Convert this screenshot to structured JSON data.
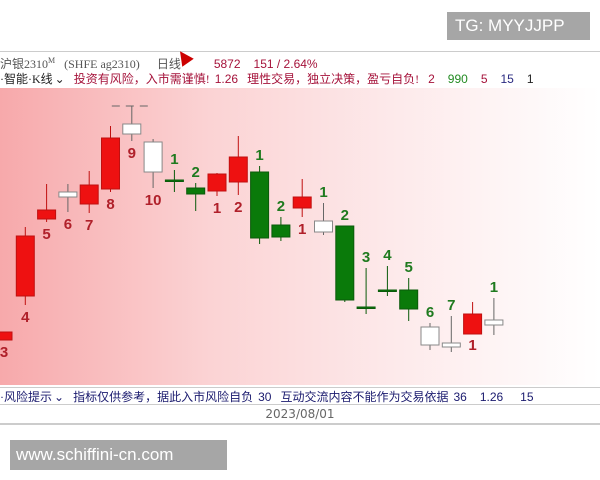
{
  "watermark_top": "TG: MYYJJPP",
  "watermark_bottom": "www.schiffini-cn.com",
  "header": {
    "symbol": "沪银2310",
    "symbol_sup": "M",
    "code": "(SHFE ag2310)",
    "period": "日线",
    "price": "5872",
    "change": "151 / 2.64%"
  },
  "indicator_bar": {
    "name": "·智能·K线",
    "text1": "投资有风险，入市需谨慎!",
    "v1": "1.26",
    "text2": "理性交易，独立决策，盈亏自负!",
    "v2": "2",
    "v3": "990",
    "v4": "5",
    "v5": "15",
    "v6": "1"
  },
  "footer": {
    "name": "·风险提示",
    "text1": "指标仅供参考，据此入市风险自负",
    "v1": "30",
    "text2": "互动交流内容不能作为交易依据",
    "v2": "36",
    "v3": "1.26",
    "v4": "15"
  },
  "date": "2023/08/01",
  "colors": {
    "up": "#ee1111",
    "down": "#0a7a0a",
    "label_up": "#b0202a",
    "label_down": "#1f7a1f",
    "neutral": "#ffffff"
  },
  "chart_data": {
    "type": "candlestick",
    "candles": [
      {
        "high": 68,
        "low": 60,
        "open": 60,
        "close": 68,
        "kind": "up",
        "label": "3",
        "label_pos": "below"
      },
      {
        "high": 173,
        "low": 95,
        "open": 104,
        "close": 164,
        "kind": "up",
        "label": "4",
        "label_pos": "below"
      },
      {
        "high": 216,
        "low": 178,
        "open": 181,
        "close": 190,
        "kind": "up",
        "label": "5",
        "label_pos": "below"
      },
      {
        "high": 216,
        "low": 188,
        "open": 203,
        "close": 208,
        "kind": "neutral",
        "label": "6",
        "label_pos": "below"
      },
      {
        "high": 229,
        "low": 187,
        "open": 196,
        "close": 215,
        "kind": "up",
        "label": "7",
        "label_pos": "below"
      },
      {
        "high": 274,
        "low": 208,
        "open": 211,
        "close": 262,
        "kind": "up",
        "label": "8",
        "label_pos": "below"
      },
      {
        "high": 294,
        "low": 259,
        "open": 266,
        "close": 276,
        "kind": "neutral",
        "label": "9",
        "label_pos": "below",
        "peak_marker": true
      },
      {
        "high": 261,
        "low": 212,
        "open": 258,
        "close": 228,
        "kind": "neutral",
        "label": "10",
        "label_pos": "below"
      },
      {
        "high": 230,
        "low": 208,
        "open": 220,
        "close": 220,
        "kind": "down",
        "label": "1",
        "label_pos": "above"
      },
      {
        "high": 217,
        "low": 189,
        "open": 212,
        "close": 206,
        "kind": "down",
        "label": "2",
        "label_pos": "above"
      },
      {
        "high": 227,
        "low": 204,
        "open": 209,
        "close": 226,
        "kind": "up",
        "label": "1",
        "label_pos": "below"
      },
      {
        "high": 264,
        "low": 205,
        "open": 218,
        "close": 243,
        "kind": "up",
        "label": "2",
        "label_pos": "below"
      },
      {
        "high": 234,
        "low": 156,
        "open": 228,
        "close": 162,
        "kind": "down",
        "label": "1",
        "label_pos": "above"
      },
      {
        "high": 183,
        "low": 159,
        "open": 175,
        "close": 163,
        "kind": "down",
        "label": "2",
        "label_pos": "above"
      },
      {
        "high": 221,
        "low": 183,
        "open": 192,
        "close": 203,
        "kind": "up",
        "label": "1",
        "label_pos": "below"
      },
      {
        "high": 197,
        "low": 165,
        "open": 179,
        "close": 168,
        "kind": "neutral",
        "label": "1",
        "label_pos": "above"
      },
      {
        "high": 174,
        "low": 98,
        "open": 174,
        "close": 100,
        "kind": "down",
        "label": "2",
        "label_pos": "above"
      },
      {
        "high": 132,
        "low": 86,
        "open": 93,
        "close": 92,
        "kind": "down",
        "label": "3",
        "label_pos": "above"
      },
      {
        "high": 134,
        "low": 104,
        "open": 110,
        "close": 110,
        "kind": "down",
        "label": "4",
        "label_pos": "above"
      },
      {
        "high": 122,
        "low": 79,
        "open": 110,
        "close": 91,
        "kind": "down",
        "label": "5",
        "label_pos": "above"
      },
      {
        "high": 77,
        "low": 50,
        "open": 73,
        "close": 55,
        "kind": "neutral",
        "label": "6",
        "label_pos": "above"
      },
      {
        "high": 84,
        "low": 48,
        "open": 57,
        "close": 53,
        "kind": "neutral",
        "label": "7",
        "label_pos": "above"
      },
      {
        "high": 98,
        "low": 67,
        "open": 66,
        "close": 86,
        "kind": "up",
        "label": "1",
        "label_pos": "below"
      },
      {
        "high": 102,
        "low": 65,
        "open": 75,
        "close": 80,
        "kind": "neutral",
        "label": "1",
        "label_pos": "above"
      }
    ]
  }
}
